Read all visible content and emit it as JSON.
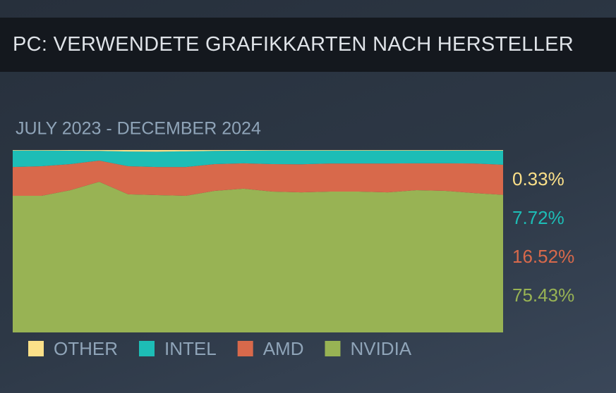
{
  "chart_data": {
    "type": "stacked-area",
    "title": "PC: VERWENDETE GRAFIKKARTEN NACH HERSTELLER",
    "subtitle": "JULY 2023 - DECEMBER 2024",
    "categories": [
      null,
      null,
      null,
      null,
      null,
      null,
      null,
      null,
      null,
      null,
      null,
      null,
      null,
      null,
      null,
      null,
      null,
      null
    ],
    "ylim": [
      0,
      100
    ],
    "series": [
      {
        "name": "OTHER",
        "color": "#fbe089",
        "values": [
          0.3,
          0.3,
          0.4,
          0.5,
          0.8,
          0.9,
          0.7,
          0.5,
          0.4,
          0.3,
          0.3,
          0.3,
          0.3,
          0.3,
          0.3,
          0.3,
          0.3,
          0.33
        ],
        "value_labels": [
          null,
          null,
          null,
          null,
          null,
          null,
          null,
          null,
          null,
          null,
          null,
          null,
          null,
          null,
          null,
          null,
          null,
          "0.33%"
        ]
      },
      {
        "name": "INTEL",
        "color": "#1dbdb6",
        "values": [
          9.0,
          8.6,
          7.3,
          5.3,
          8.1,
          8.4,
          8.6,
          7.2,
          6.9,
          7.4,
          7.5,
          7.1,
          7.1,
          7.1,
          7.0,
          7.0,
          7.1,
          7.72
        ],
        "value_labels": [
          null,
          null,
          null,
          null,
          null,
          null,
          null,
          null,
          null,
          null,
          null,
          null,
          null,
          null,
          null,
          null,
          null,
          "7.72%"
        ]
      },
      {
        "name": "AMD",
        "color": "#d8694b",
        "values": [
          15.8,
          16.2,
          14.3,
          11.6,
          15.4,
          15.4,
          15.8,
          14.7,
          13.9,
          15.1,
          15.4,
          15.4,
          15.4,
          15.8,
          14.7,
          15.1,
          16.2,
          16.52
        ],
        "value_labels": [
          null,
          null,
          null,
          null,
          null,
          null,
          null,
          null,
          null,
          null,
          null,
          null,
          null,
          null,
          null,
          null,
          null,
          "16.52%"
        ]
      },
      {
        "name": "NVIDIA",
        "color": "#98b354",
        "values": [
          74.9,
          74.9,
          78.0,
          82.6,
          75.7,
          75.3,
          74.9,
          77.6,
          78.8,
          77.2,
          76.8,
          77.2,
          77.2,
          76.8,
          78.0,
          77.6,
          76.4,
          75.43
        ],
        "value_labels": [
          null,
          null,
          null,
          null,
          null,
          null,
          null,
          null,
          null,
          null,
          null,
          null,
          null,
          null,
          null,
          null,
          null,
          "75.43%"
        ]
      }
    ]
  }
}
